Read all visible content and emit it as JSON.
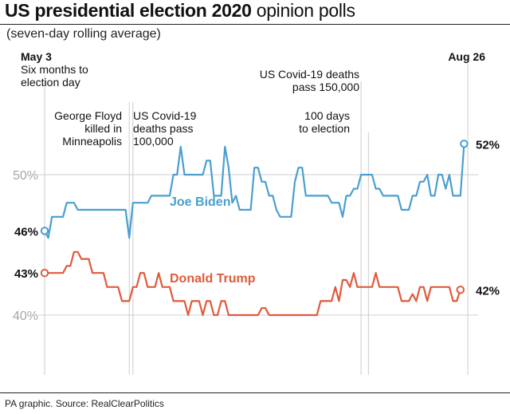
{
  "header": {
    "title_bold": "US presidential election 2020",
    "title_light": "opinion polls",
    "subtitle": "(seven-day rolling average)"
  },
  "source": "PA graphic. Source: RealClearPolitics",
  "chart_data": {
    "type": "line",
    "title": "US presidential election 2020 opinion polls",
    "subtitle": "(seven-day rolling average)",
    "x_range_days": [
      0,
      115
    ],
    "ylim": [
      36,
      54
    ],
    "gridlines": [
      50,
      40
    ],
    "y_tick_labels": [
      "50%",
      "40%"
    ],
    "x_labels": {
      "start": "May 3",
      "end": "Aug 26"
    },
    "start_note": "Six months to election day",
    "annotations": [
      {
        "day": 23,
        "lines": [
          "George Floyd",
          "killed in",
          "Minneapolis"
        ]
      },
      {
        "day": 24,
        "lines": [
          "US Covid-19",
          "deaths pass",
          "100,000"
        ]
      },
      {
        "day": 86,
        "lines": [
          "US Covid-19 deaths",
          "pass 150,000"
        ]
      },
      {
        "day": 88,
        "lines": [
          "100 days",
          "to election"
        ]
      }
    ],
    "series": [
      {
        "name": "Joe Biden",
        "color": "#4a9fd0",
        "start_label": "46%",
        "end_label": "52%",
        "values": [
          46,
          45.5,
          47,
          47,
          47,
          47,
          48,
          48,
          48,
          47.5,
          47.5,
          47.5,
          47.5,
          47.5,
          47.5,
          47.5,
          47.5,
          47.5,
          47.5,
          47.5,
          47.5,
          47.5,
          47.5,
          45.5,
          48,
          48,
          48,
          48,
          48,
          48.5,
          48.5,
          48.5,
          48.5,
          48.5,
          48.5,
          50,
          50,
          52,
          50,
          50,
          50,
          50,
          50,
          50,
          51,
          51,
          48.5,
          48.5,
          48.5,
          52,
          50.5,
          48,
          48.5,
          47.5,
          47.5,
          47.5,
          47.5,
          50.5,
          50.5,
          49.5,
          49.5,
          48.5,
          48.5,
          47.5,
          47,
          47,
          47,
          47,
          49.5,
          50.5,
          50.5,
          48.5,
          48.5,
          48.5,
          48.5,
          48.5,
          48.5,
          48.5,
          48,
          48,
          48,
          47,
          48.5,
          48.5,
          49,
          49,
          50,
          50,
          50,
          50,
          49,
          49,
          48.5,
          48.5,
          48.5,
          48.5,
          48.5,
          47.5,
          47.5,
          47.5,
          48.5,
          48.5,
          49.5,
          49.5,
          50,
          48.5,
          48.5,
          50,
          50,
          49,
          50,
          48.5,
          48.5,
          48.5,
          52.2
        ]
      },
      {
        "name": "Donald Trump",
        "color": "#e05a3c",
        "start_label": "43%",
        "end_label": "42%",
        "values": [
          43,
          43,
          43,
          43,
          43,
          43,
          43.5,
          43.5,
          44.5,
          44.5,
          44,
          44,
          44,
          43,
          43,
          43,
          43,
          42,
          42,
          42,
          42,
          41,
          41,
          41,
          42,
          42,
          43,
          43,
          42,
          42,
          42,
          43,
          42,
          42,
          42,
          41,
          41,
          41,
          41,
          40,
          41,
          41,
          41,
          40,
          41,
          41,
          40,
          40,
          41,
          41,
          40,
          40,
          40,
          40,
          40,
          40,
          40,
          40,
          40,
          40.5,
          40.5,
          40,
          40,
          40,
          40,
          40,
          40,
          40,
          40,
          40,
          40,
          40,
          40,
          40,
          40,
          41,
          41,
          41,
          41,
          42,
          41,
          42.5,
          42.5,
          42,
          43,
          42,
          42,
          42,
          42,
          42,
          43,
          42,
          42,
          42,
          42,
          42,
          42,
          41,
          41,
          41,
          41.5,
          41,
          42,
          42,
          41,
          42,
          42,
          42,
          42,
          42,
          42,
          41,
          41,
          41.8
        ]
      }
    ]
  }
}
